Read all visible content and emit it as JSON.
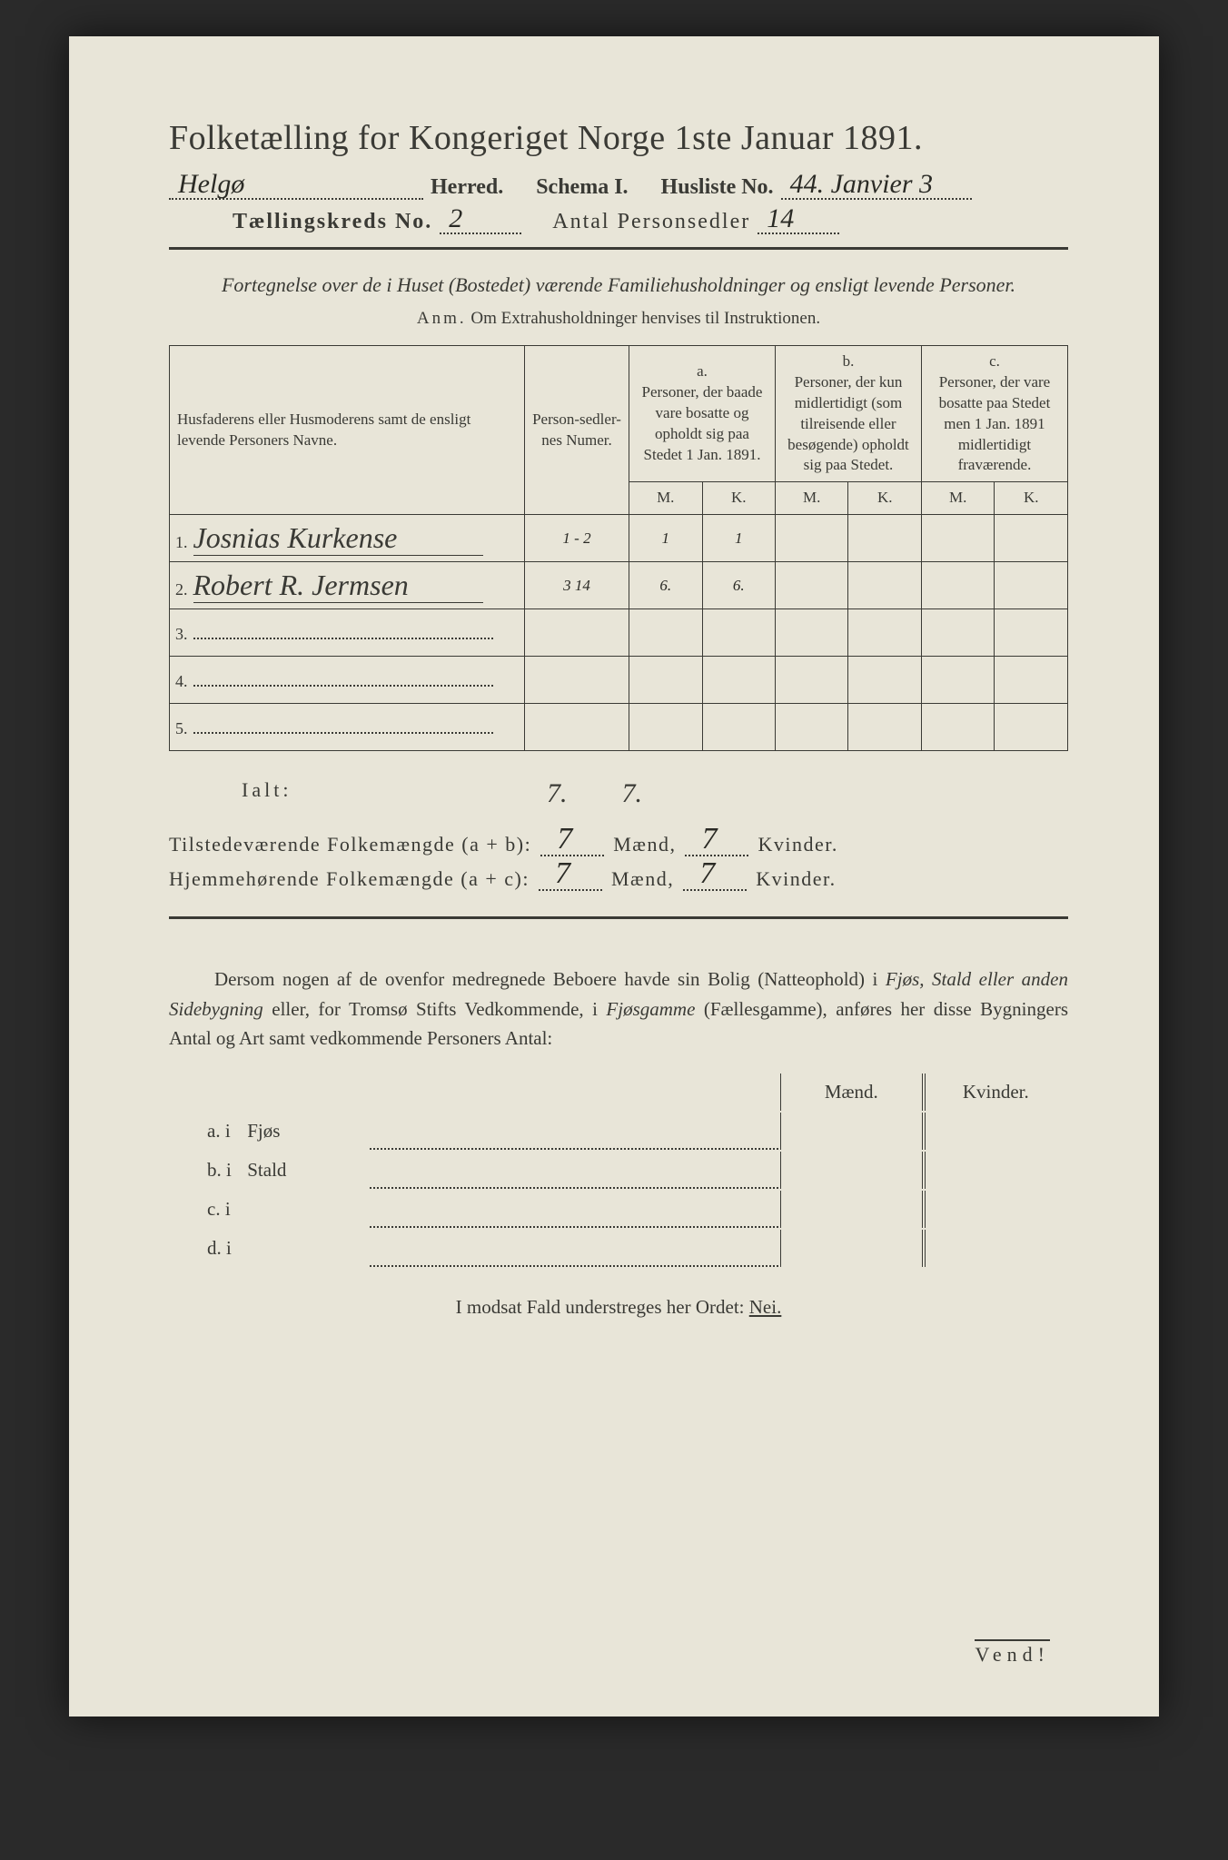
{
  "title": "Folketælling for Kongeriget Norge 1ste Januar 1891.",
  "header": {
    "herred_value": "Helgø",
    "herred_label": "Herred.",
    "schema_label": "Schema I.",
    "husliste_label": "Husliste No.",
    "husliste_value": "44. Janvier 3",
    "kreds_label": "Tællingskreds No.",
    "kreds_value": "2",
    "antal_label": "Antal Personsedler",
    "antal_value": "14"
  },
  "subtitle": "Fortegnelse over de i Huset (Bostedet) værende Familiehusholdninger og ensligt levende Personer.",
  "anm_label": "Anm.",
  "anm_text": "Om Extrahusholdninger henvises til Instruktionen.",
  "cols": {
    "name": "Husfaderens eller Husmoderens samt de ensligt levende Personers Navne.",
    "num": "Person-sedler-nes Numer.",
    "a_label": "a.",
    "a_text": "Personer, der baade vare bosatte og opholdt sig paa Stedet 1 Jan. 1891.",
    "b_label": "b.",
    "b_text": "Personer, der kun midlertidigt (som tilreisende eller besøgende) opholdt sig paa Stedet.",
    "c_label": "c.",
    "c_text": "Personer, der vare bosatte paa Stedet men 1 Jan. 1891 midlertidigt fraværende.",
    "M": "M.",
    "K": "K."
  },
  "rows": [
    {
      "n": "1.",
      "name": "Josnias Kurkense",
      "num": "1 - 2",
      "aM": "1",
      "aK": "1",
      "bM": "",
      "bK": "",
      "cM": "",
      "cK": ""
    },
    {
      "n": "2.",
      "name": "Robert R. Jermsen",
      "num": "3 14",
      "aM": "6.",
      "aK": "6.",
      "bM": "",
      "bK": "",
      "cM": "",
      "cK": ""
    },
    {
      "n": "3.",
      "name": "",
      "num": "",
      "aM": "",
      "aK": "",
      "bM": "",
      "bK": "",
      "cM": "",
      "cK": ""
    },
    {
      "n": "4.",
      "name": "",
      "num": "",
      "aM": "",
      "aK": "",
      "bM": "",
      "bK": "",
      "cM": "",
      "cK": ""
    },
    {
      "n": "5.",
      "name": "",
      "num": "",
      "aM": "",
      "aK": "",
      "bM": "",
      "bK": "",
      "cM": "",
      "cK": ""
    }
  ],
  "ialt": {
    "label": "Ialt:",
    "m": "7.",
    "k": "7."
  },
  "summary": {
    "tilstede_label": "Tilstedeværende Folkemængde (a + b):",
    "tilstede_m": "7",
    "tilstede_k": "7",
    "hjemme_label": "Hjemmehørende Folkemængde (a + c):",
    "hjemme_m": "7",
    "hjemme_k": "7",
    "maend": "Mænd,",
    "kvinder": "Kvinder."
  },
  "para": "Dersom nogen af de ovenfor medregnede Beboere havde sin Bolig (Natteophold) i Fjøs, Stald eller anden Sidebygning eller, for Tromsø Stifts Vedkommende, i Fjøsgamme (Fællesgamme), anføres her disse Bygningers Antal og Art samt vedkommende Personers Antal:",
  "buildings": {
    "maend": "Mænd.",
    "kvinder": "Kvinder.",
    "rows": [
      {
        "lbl": "a.  i",
        "type": "Fjøs"
      },
      {
        "lbl": "b.  i",
        "type": "Stald"
      },
      {
        "lbl": "c.  i",
        "type": ""
      },
      {
        "lbl": "d.  i",
        "type": ""
      }
    ]
  },
  "nei_text": "I modsat Fald understreges her Ordet:",
  "nei_word": "Nei.",
  "vend": "Vend!"
}
